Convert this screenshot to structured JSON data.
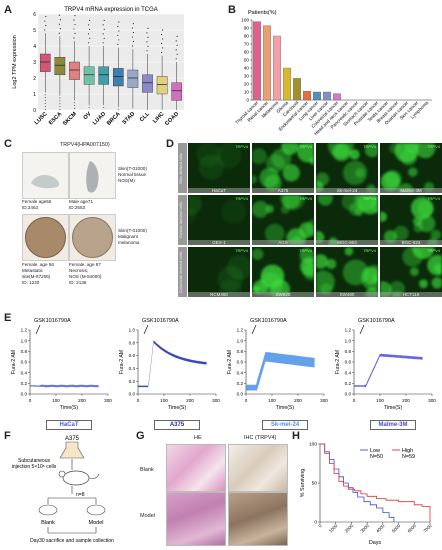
{
  "panels": {
    "A": {
      "letter": "A",
      "chart_data": {
        "type": "box",
        "title": "TRPV4 mRNA expression in TCGA",
        "ylabel": "Log2 TPM expression",
        "categories": [
          "LUSC",
          "ESCA",
          "SKCM",
          "OV",
          "LUAD",
          "BRCA",
          "STAD",
          "CLL",
          "LIHC",
          "COAD"
        ],
        "medians": [
          3.0,
          2.8,
          2.5,
          2.2,
          2.2,
          2.1,
          2.0,
          1.7,
          1.6,
          1.2
        ],
        "colors": [
          "#d1567a",
          "#8c8a3a",
          "#e08080",
          "#6fc2a8",
          "#3fa0a8",
          "#3d7fb0",
          "#9aa8c8",
          "#8a8ac8",
          "#e0d080",
          "#d070c0"
        ],
        "ylim": [
          0,
          6
        ],
        "yticks": [
          "0",
          "1",
          "2",
          "3",
          "4",
          "5",
          "6"
        ]
      }
    },
    "B": {
      "letter": "B",
      "chart_data": {
        "type": "bar",
        "ylabel": "Patients(%)",
        "categories": [
          "Thyroid cancer",
          "Renal cancer",
          "Melanoma",
          "Glioma",
          "Carcinoid",
          "Endometrial cancer",
          "Lung cancer",
          "Liver cancer",
          "Colorectal cancer",
          "Head and neck cancer",
          "Pancreatic cancer",
          "Stomach cancer",
          "Prostate cancer",
          "Testis cancer",
          "Breast cancer",
          "Ovarian cancer",
          "Skin cancer",
          "Lymphoma"
        ],
        "values": [
          98,
          93,
          80,
          40,
          27,
          11,
          10,
          10,
          8,
          0,
          0,
          0,
          0,
          0,
          0,
          0,
          0,
          0
        ],
        "colors": [
          "#e06090",
          "#e8a070",
          "#f4a0a8",
          "#d8b830",
          "#a09030",
          "#e07040",
          "#5090c0",
          "#8090c8",
          "#d878c8",
          "#888",
          "#888",
          "#888",
          "#888",
          "#888",
          "#888",
          "#888",
          "#888",
          "#888"
        ],
        "ylim": [
          0,
          100
        ],
        "yticks": [
          "0",
          "10",
          "20",
          "30",
          "40",
          "50",
          "60",
          "70",
          "80",
          "90",
          "100"
        ]
      }
    },
    "C": {
      "letter": "C",
      "title": "TRPV4(HPA007150)",
      "cap1": "Female age56",
      "cap2": "ID:2463",
      "cap3": "Male age71",
      "cap4": "ID:2553",
      "side1a": "Skin(T-01000)",
      "side1b": "Normal tissue",
      "side1c": "NOS(M)",
      "cap5": "Female, age 56",
      "cap6": "Metastatic",
      "cap7": "site(M-87206)",
      "cap8": "ID: 1220",
      "cap9": "Female, age 87",
      "cap10": "Necrosis,",
      "cap11": "NOS (M-54000)",
      "cap12": "ID: 2136",
      "side2a": "Skin(T-01000)",
      "side2b": "Malignant",
      "side2c": "melanoma"
    },
    "D": {
      "letter": "D",
      "channel": "TRPV4",
      "rows": [
        {
          "label": "Skin derived cells",
          "cells": [
            "HaCaT",
            "A375",
            "Sk-mel-24",
            "Malme-3M"
          ]
        },
        {
          "label": "Gastric derived cells",
          "cells": [
            "GES-1",
            "AGS",
            "MGC-803",
            "BGC-823"
          ]
        },
        {
          "label": "Colorectal derived cells",
          "cells": [
            "NCM460",
            "SW620",
            "SW480",
            "HCT116"
          ]
        }
      ]
    },
    "E": {
      "letter": "E",
      "drug": "GSK1016790A",
      "ylabel": "Fura-2 AM",
      "xlabel": "Time(S)",
      "charts": [
        {
          "name": "HaCaT",
          "color": "#4a5ae8",
          "xlim": [
            0,
            300
          ],
          "ylim": [
            0,
            1.2
          ],
          "xticks": [
            "0",
            "100",
            "200",
            "300"
          ],
          "yticks": [
            "0.0",
            "0.2",
            "0.4",
            "0.6",
            "0.8",
            "1.0",
            "1.2"
          ]
        },
        {
          "name": "A375",
          "color": "#1a2aa8",
          "xlim": [
            0,
            300
          ],
          "ylim": [
            0,
            1.0
          ],
          "xticks": [
            "0",
            "100",
            "200",
            "300"
          ],
          "yticks": [
            "0.0",
            "0.2",
            "0.4",
            "0.6",
            "0.8",
            "1.0"
          ]
        },
        {
          "name": "Sk-mel-24",
          "color": "#4a90e8",
          "xlim": [
            0,
            300
          ],
          "ylim": [
            0,
            1.2
          ],
          "xticks": [
            "0",
            "100",
            "200",
            "300"
          ],
          "yticks": [
            "0.0",
            "0.2",
            "0.4",
            "0.6",
            "0.8",
            "1.0",
            "1.2"
          ]
        },
        {
          "name": "Malme-3M",
          "color": "#4a4ae0",
          "xlim": [
            0,
            300
          ],
          "ylim": [
            0,
            1.2
          ],
          "xticks": [
            "0",
            "100",
            "200",
            "300"
          ],
          "yticks": [
            "0.0",
            "0.2",
            "0.4",
            "0.6",
            "0.8",
            "1.0",
            "1.2"
          ]
        }
      ]
    },
    "F": {
      "letter": "F",
      "cell": "A375",
      "inj1": "Subcutaneous",
      "inj2": "injection 5×10⁶ cells",
      "n": "n=8",
      "blank": "Blank",
      "model": "Model",
      "day": "Day30 sacrifice and sample collection"
    },
    "G": {
      "letter": "G",
      "he": "HE",
      "ihc": "IHC (TRPV4)",
      "row1": "Blank",
      "row2": "Model"
    },
    "H": {
      "letter": "H",
      "chart_data": {
        "type": "line",
        "ylabel": "% Surviving",
        "xlabel": "Days",
        "xticks": [
          "0",
          "1000",
          "2000",
          "3000",
          "4000",
          "5000",
          "6000",
          "7000"
        ],
        "yticks": [
          "0",
          "50",
          "100"
        ],
        "xlim": [
          0,
          7000
        ],
        "ylim": [
          0,
          100
        ],
        "series": [
          {
            "name": "Low",
            "n": "N=50",
            "color": "#3050e0",
            "x": [
              0,
              300,
              600,
              900,
              1200,
              1500,
              1800,
              2100,
              2400,
              2800,
              3200,
              3600,
              4000,
              4400,
              4700
            ],
            "y": [
              100,
              90,
              80,
              68,
              58,
              50,
              44,
              38,
              32,
              26,
              22,
              18,
              12,
              6,
              0
            ]
          },
          {
            "name": "High",
            "n": "N=59",
            "color": "#e03030",
            "x": [
              0,
              300,
              600,
              900,
              1200,
              1500,
              1800,
              2200,
              2600,
              3000,
              3600,
              4200,
              5000,
              6000,
              6500,
              7000
            ],
            "y": [
              100,
              88,
              75,
              62,
              52,
              46,
              42,
              40,
              36,
              33,
              30,
              28,
              26,
              22,
              20,
              0
            ]
          }
        ]
      }
    }
  }
}
